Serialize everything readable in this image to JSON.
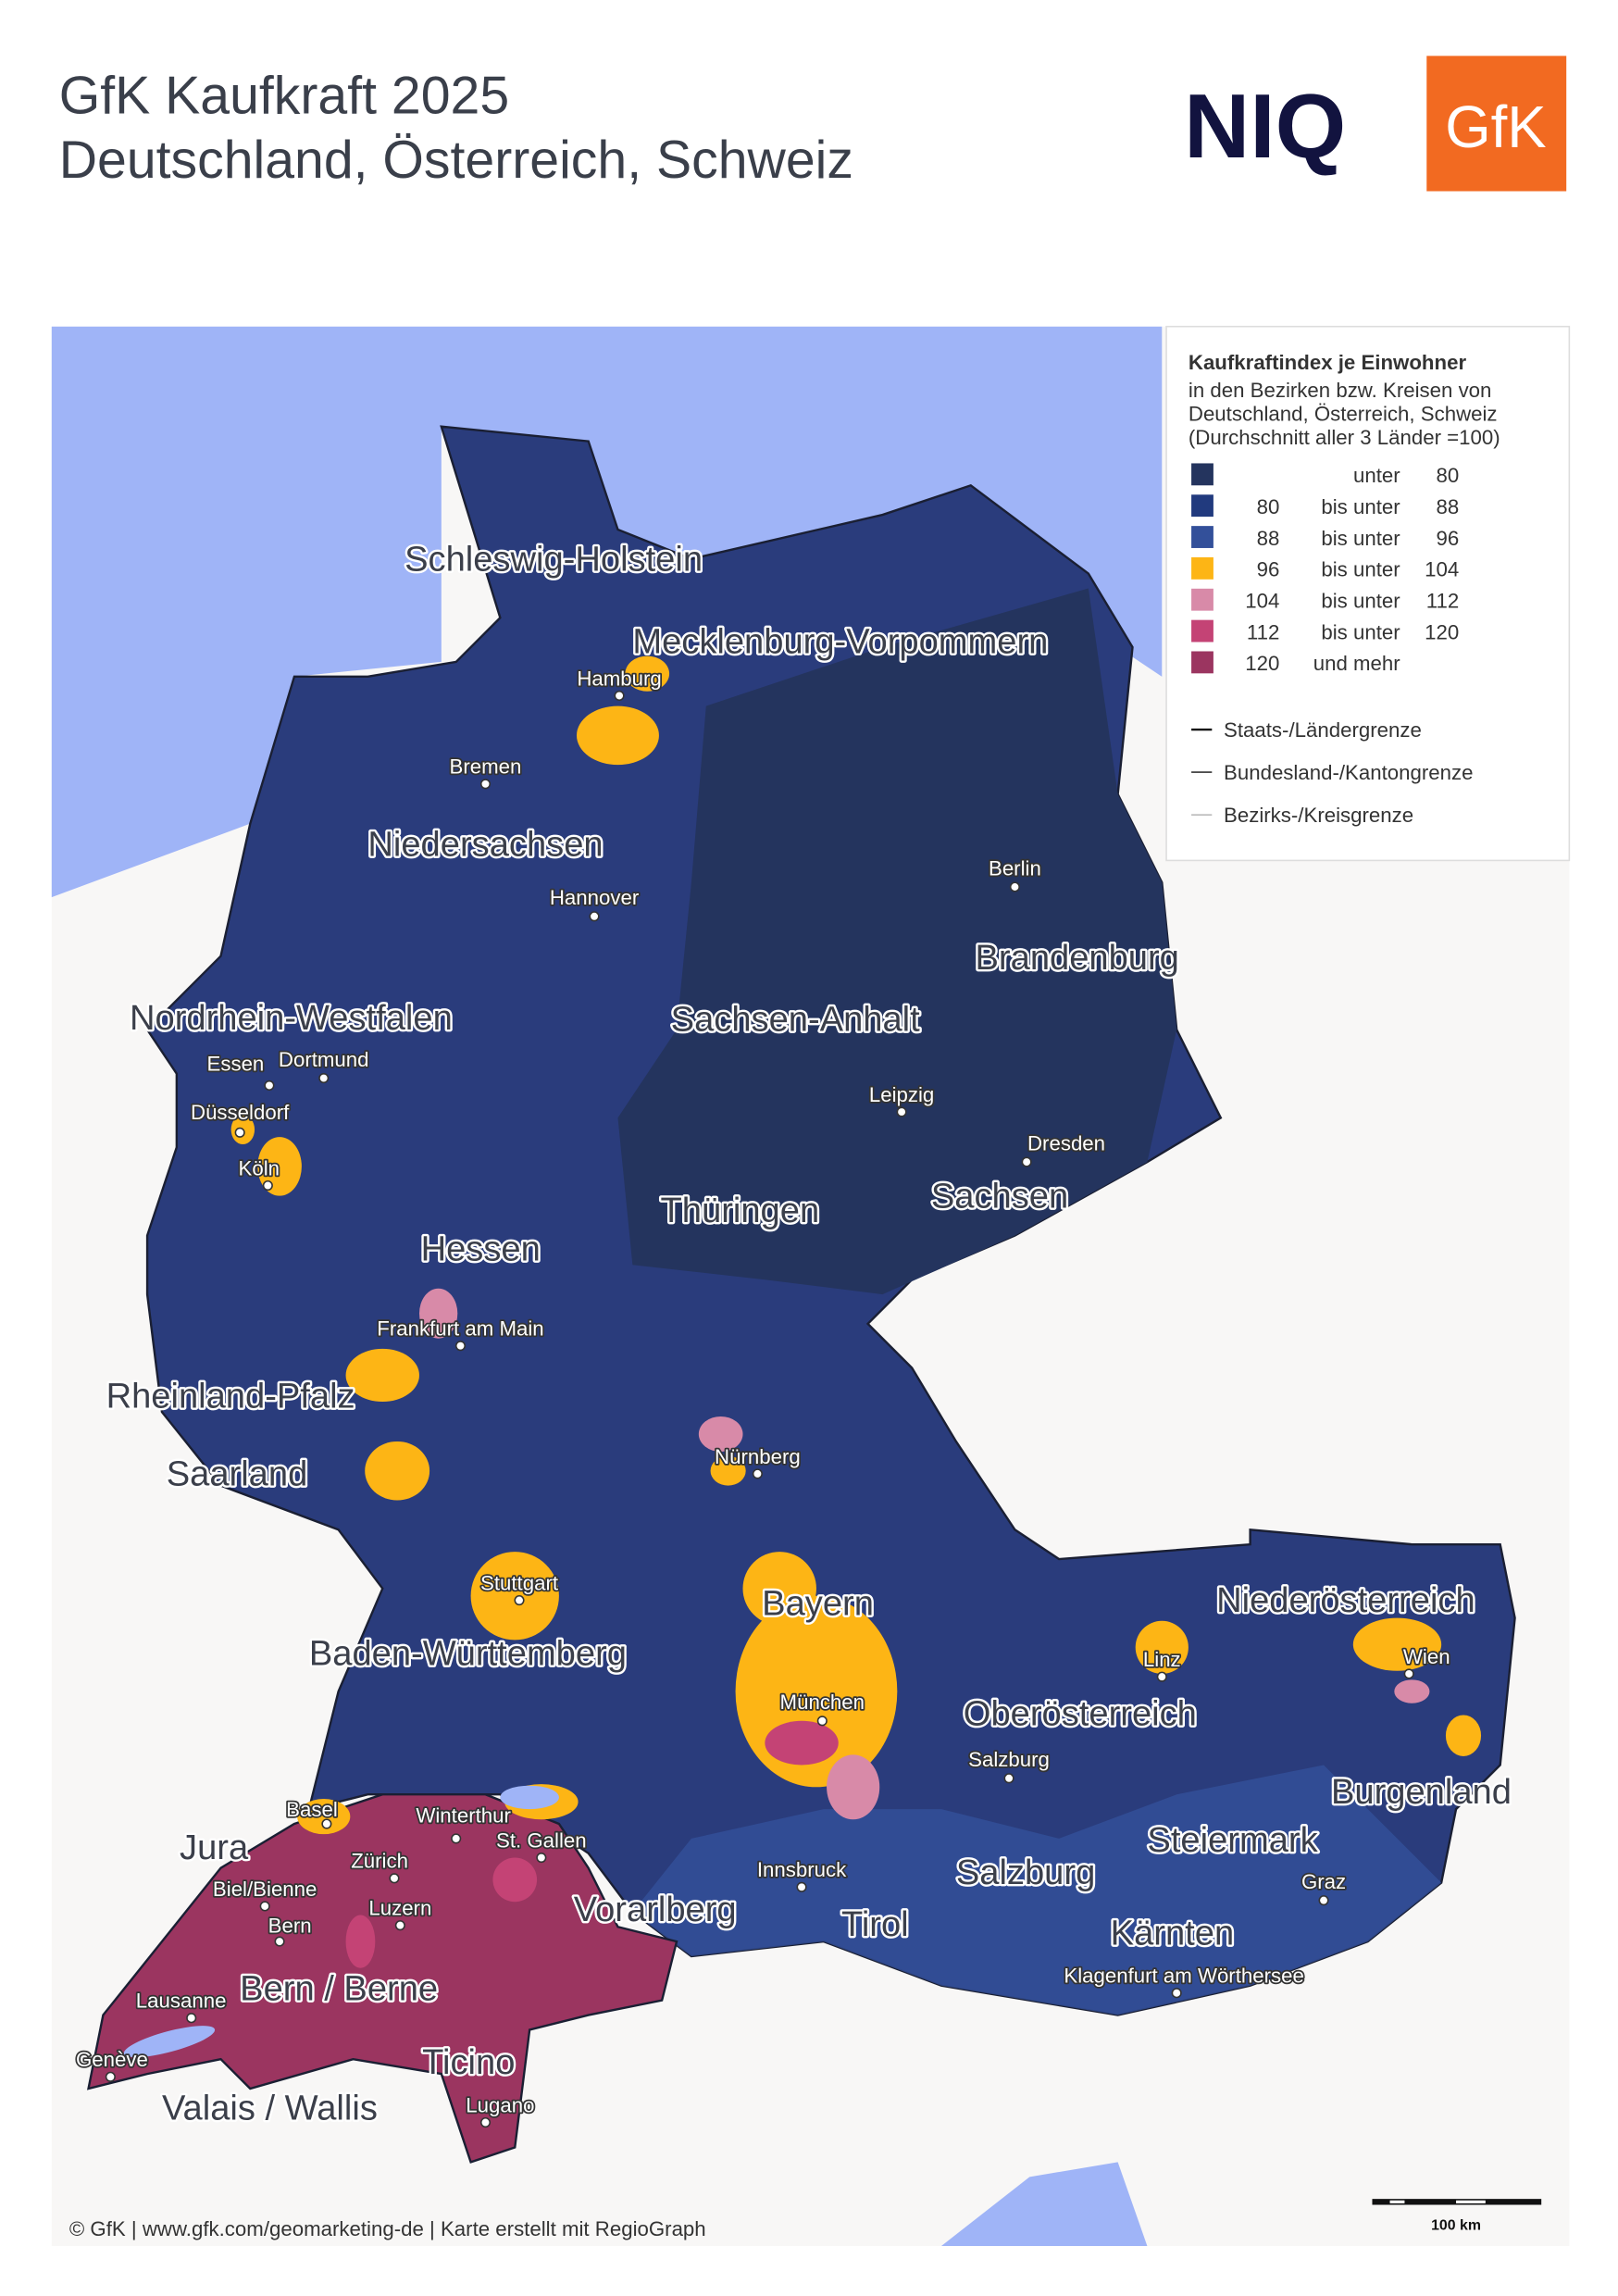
{
  "header": {
    "title_lines": [
      "GfK Kaufkraft 2025",
      "Deutschland, Österreich, Schweiz"
    ],
    "logos": [
      "NIQ",
      "GfK"
    ]
  },
  "legend": {
    "title": "Kaufkraftindex je Einwohner",
    "subtitle_lines": [
      "in den Bezirken bzw. Kreisen von",
      "Deutschland, Österreich, Schweiz",
      "(Durchschnitt aller 3 Länder =100)"
    ],
    "classes": [
      {
        "connector": "unter",
        "to": 80,
        "color": "#24345e"
      },
      {
        "from": 80,
        "connector": "bis unter",
        "to": 88,
        "color": "#213a7e"
      },
      {
        "from": 88,
        "connector": "bis unter",
        "to": 96,
        "color": "#33509a"
      },
      {
        "from": 96,
        "connector": "bis unter",
        "to": 104,
        "color": "#fdb515"
      },
      {
        "from": 104,
        "connector": "bis unter",
        "to": 112,
        "color": "#d88aa8"
      },
      {
        "from": 112,
        "connector": "bis unter",
        "to": 120,
        "color": "#c44375"
      },
      {
        "from": 120,
        "connector": "und mehr",
        "color": "#9b3560"
      }
    ],
    "borders": [
      "Staats-/Ländergrenze",
      "Bundesland-/Kantongrenze",
      "Bezirks-/Kreisgrenze"
    ]
  },
  "regions": [
    "Schleswig-Holstein",
    "Mecklenburg-Vorpommern",
    "Niedersachsen",
    "Brandenburg",
    "Nordrhein-Westfalen",
    "Sachsen-Anhalt",
    "Sachsen",
    "Thüringen",
    "Hessen",
    "Rheinland-Pfalz",
    "Saarland",
    "Bayern",
    "Baden-Württemberg",
    "Niederösterreich",
    "Oberösterreich",
    "Burgenland",
    "Steiermark",
    "Salzburg",
    "Vorarlberg",
    "Tirol",
    "Kärnten",
    "Jura",
    "Bern / Berne",
    "Ticino",
    "Valais / Wallis"
  ],
  "cities": [
    "Hamburg",
    "Bremen",
    "Hannover",
    "Berlin",
    "Essen",
    "Dortmund",
    "Düsseldorf",
    "Köln",
    "Leipzig",
    "Dresden",
    "Frankfurt am Main",
    "Nürnberg",
    "Stuttgart",
    "München",
    "Linz",
    "Wien",
    "Salzburg",
    "Innsbruck",
    "Graz",
    "Klagenfurt am Wörthersee",
    "Basel",
    "Winterthur",
    "St. Gallen",
    "Zürich",
    "Biel/Bienne",
    "Luzern",
    "Bern",
    "Lausanne",
    "Genève",
    "Lugano"
  ],
  "footer": {
    "credit": "© GfK | www.gfk.com/geomarketing-de | Karte erstellt mit RegioGraph",
    "scale": "100 km"
  }
}
